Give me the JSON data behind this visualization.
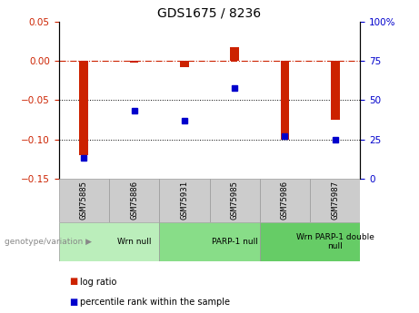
{
  "title": "GDS1675 / 8236",
  "samples": [
    "GSM75885",
    "GSM75886",
    "GSM75931",
    "GSM75985",
    "GSM75986",
    "GSM75987"
  ],
  "log_ratios": [
    -0.12,
    -0.002,
    -0.008,
    0.018,
    -0.1,
    -0.075
  ],
  "percentile_ranks": [
    13,
    43,
    37,
    58,
    27,
    25
  ],
  "groups": [
    {
      "label": "Wrn null",
      "start": 0,
      "end": 2,
      "color": "#bbeebb"
    },
    {
      "label": "PARP-1 null",
      "start": 2,
      "end": 4,
      "color": "#88dd88"
    },
    {
      "label": "Wrn PARP-1 double\nnull",
      "start": 4,
      "end": 6,
      "color": "#66cc66"
    }
  ],
  "ylim_left": [
    -0.15,
    0.05
  ],
  "ylim_right": [
    0,
    100
  ],
  "yticks_left": [
    -0.15,
    -0.1,
    -0.05,
    0,
    0.05
  ],
  "yticks_right": [
    0,
    25,
    50,
    75,
    100
  ],
  "bar_color": "#cc2200",
  "dot_color": "#0000cc",
  "hline_color": "#cc2200",
  "grid_color": "black",
  "legend_items": [
    "log ratio",
    "percentile rank within the sample"
  ],
  "legend_colors": [
    "#cc2200",
    "#0000cc"
  ],
  "genotype_label": "genotype/variation",
  "tick_label_color_left": "#cc2200",
  "tick_label_color_right": "#0000cc",
  "bar_width": 0.18,
  "sample_box_color": "#cccccc",
  "title_fontsize": 10,
  "tick_fontsize": 7.5,
  "label_fontsize": 6.5
}
